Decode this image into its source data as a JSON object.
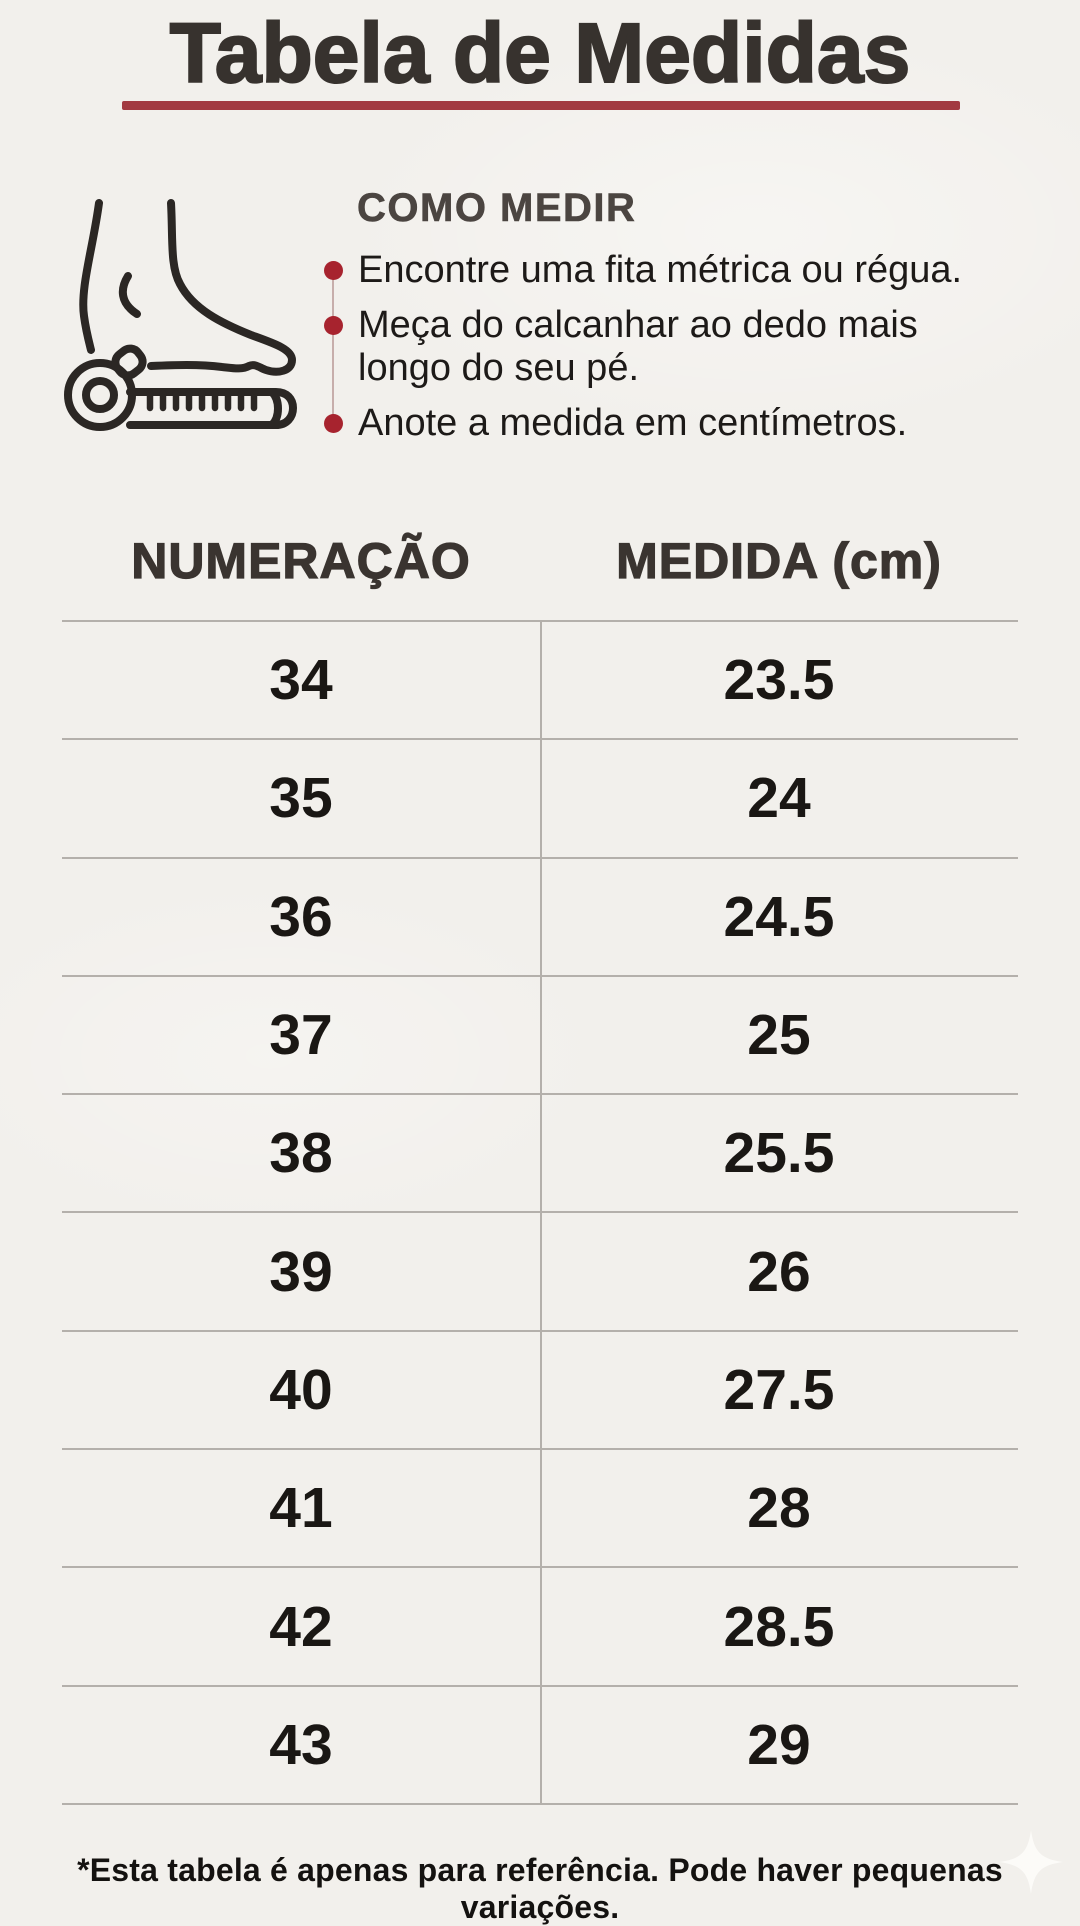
{
  "title": "Tabela de Medidas",
  "how_to": {
    "heading": "COMO MEDIR",
    "steps": [
      {
        "lines": [
          "Encontre uma fita métrica ou régua."
        ]
      },
      {
        "lines": [
          "Meça do calcanhar ao dedo mais",
          "longo do seu pé."
        ]
      },
      {
        "lines": [
          "Anote a medida em centímetros."
        ]
      }
    ],
    "icon": "foot-on-measuring-tape-icon"
  },
  "table": {
    "columns": [
      "NUMERAÇÃO",
      "MEDIDA (cm)"
    ],
    "rows": [
      {
        "numeracao": "34",
        "medida_cm": "23.5"
      },
      {
        "numeracao": "35",
        "medida_cm": "24"
      },
      {
        "numeracao": "36",
        "medida_cm": "24.5"
      },
      {
        "numeracao": "37",
        "medida_cm": "25"
      },
      {
        "numeracao": "38",
        "medida_cm": "25.5"
      },
      {
        "numeracao": "39",
        "medida_cm": "26"
      },
      {
        "numeracao": "40",
        "medida_cm": "27.5"
      },
      {
        "numeracao": "41",
        "medida_cm": "28"
      },
      {
        "numeracao": "42",
        "medida_cm": "28.5"
      },
      {
        "numeracao": "43",
        "medida_cm": "29"
      }
    ]
  },
  "footnote": "*Esta tabela é apenas para referência. Pode haver pequenas variações.",
  "colors": {
    "background": "#f2f0ec",
    "ink": "#37322e",
    "accent_red": "#a23a41",
    "bullet_red": "#a7232e",
    "grid_line": "#b4b0ab",
    "sparkle_white": "#fdfcfa"
  }
}
